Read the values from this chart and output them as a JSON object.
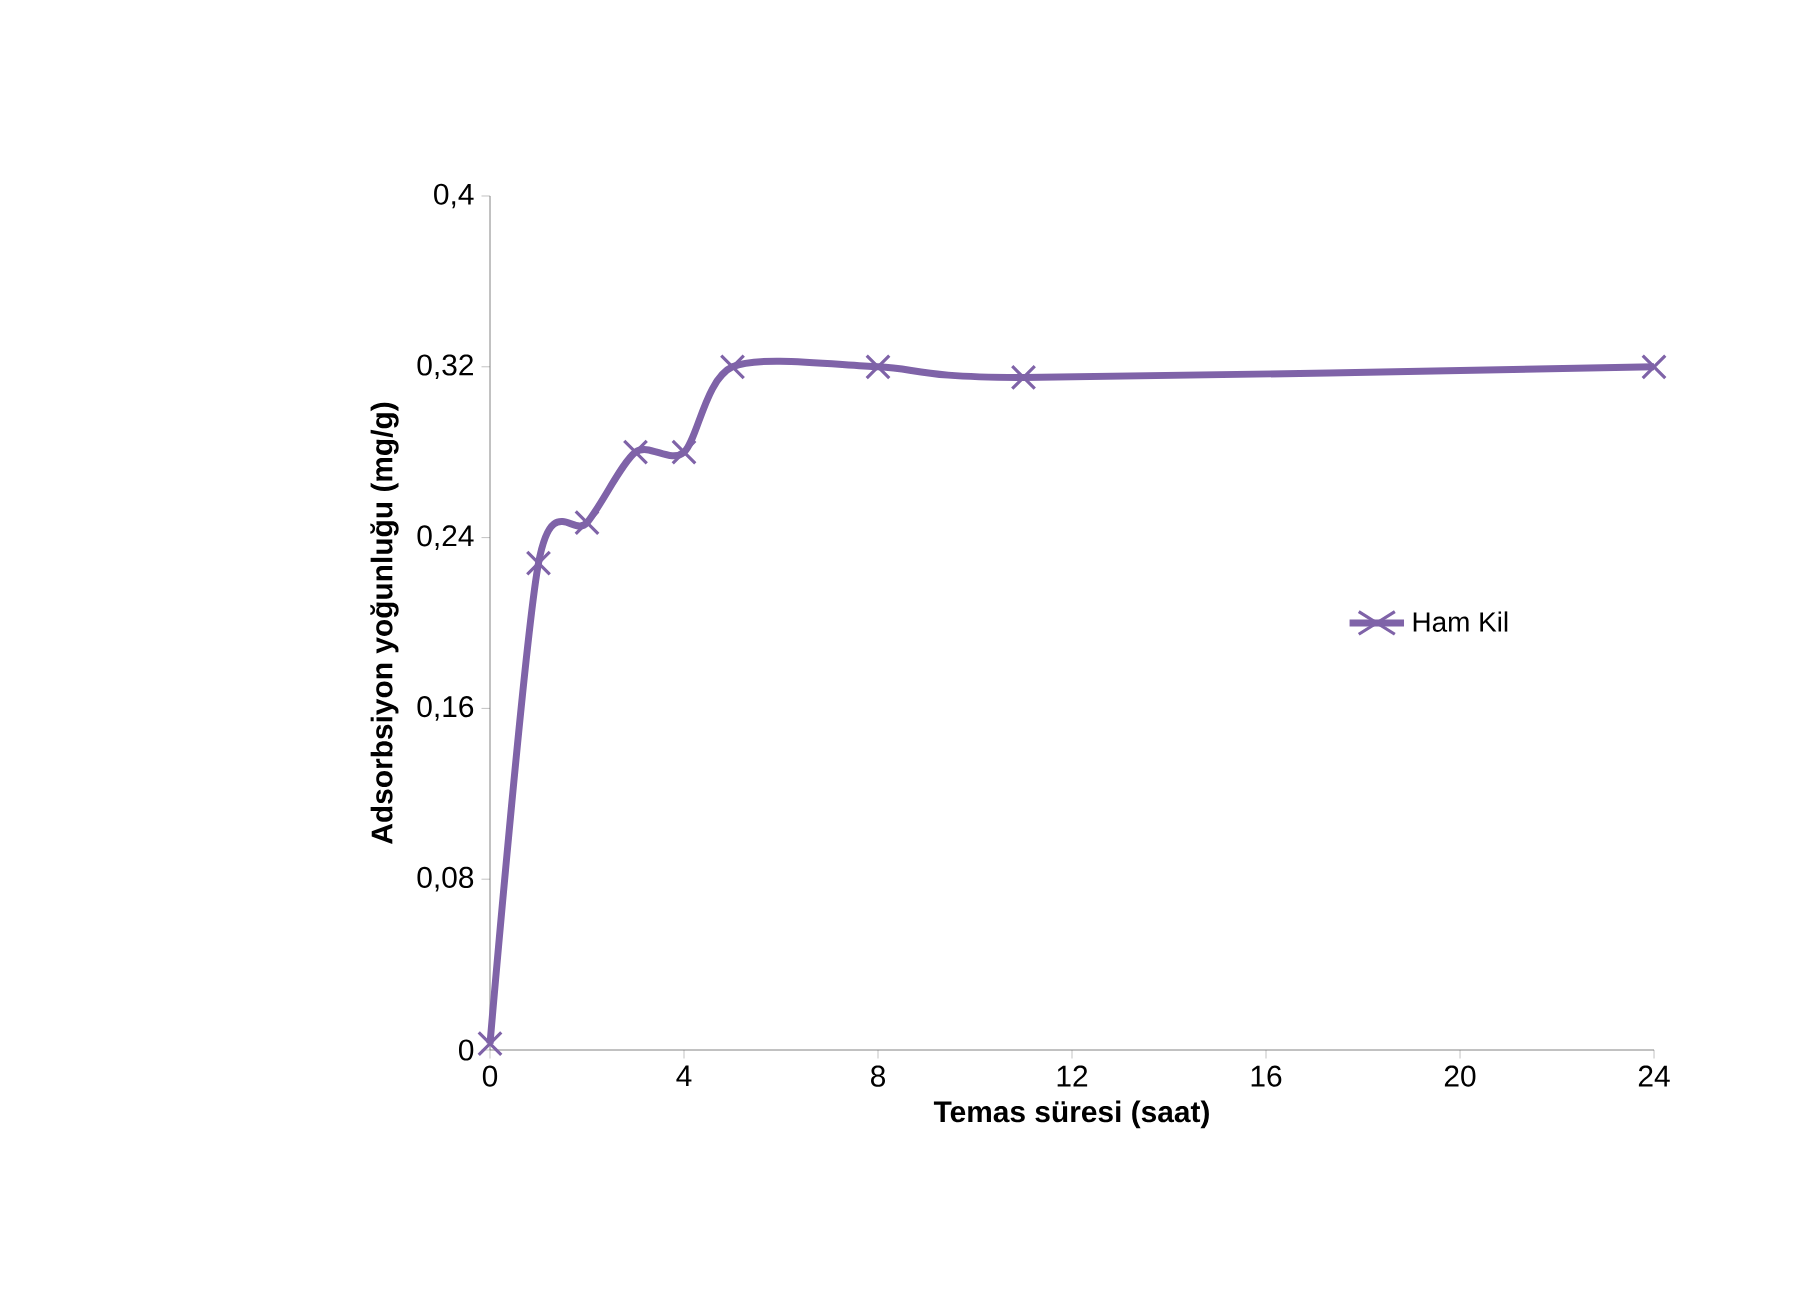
{
  "chart_data": {
    "type": "line",
    "xlabel": "Temas süresi (saat)",
    "ylabel": "Adsorbsiyon yoğunluğu (mg/g)",
    "x": [
      0,
      1,
      2,
      3,
      4,
      5,
      8,
      11,
      24
    ],
    "series": [
      {
        "name": "Ham Kil",
        "color": "#7f63a8",
        "values": [
          0.003,
          0.228,
          0.247,
          0.28,
          0.28,
          0.32,
          0.32,
          0.315,
          0.32
        ]
      }
    ],
    "xlim": [
      0,
      24
    ],
    "xticks": [
      0,
      4,
      8,
      12,
      16,
      20,
      24
    ],
    "ylim": [
      0,
      0.4
    ],
    "yticks": [
      0,
      {
        "value": 0.08,
        "label": "0,08"
      },
      {
        "value": 0.16,
        "label": "0,16"
      },
      {
        "value": 0.24,
        "label": "0,24"
      },
      {
        "value": 0.32,
        "label": "0,32"
      },
      {
        "value": 0.4,
        "label": "0,4"
      }
    ],
    "marker": "cross",
    "line_style": "solid",
    "legend": "right",
    "grid": false
  }
}
